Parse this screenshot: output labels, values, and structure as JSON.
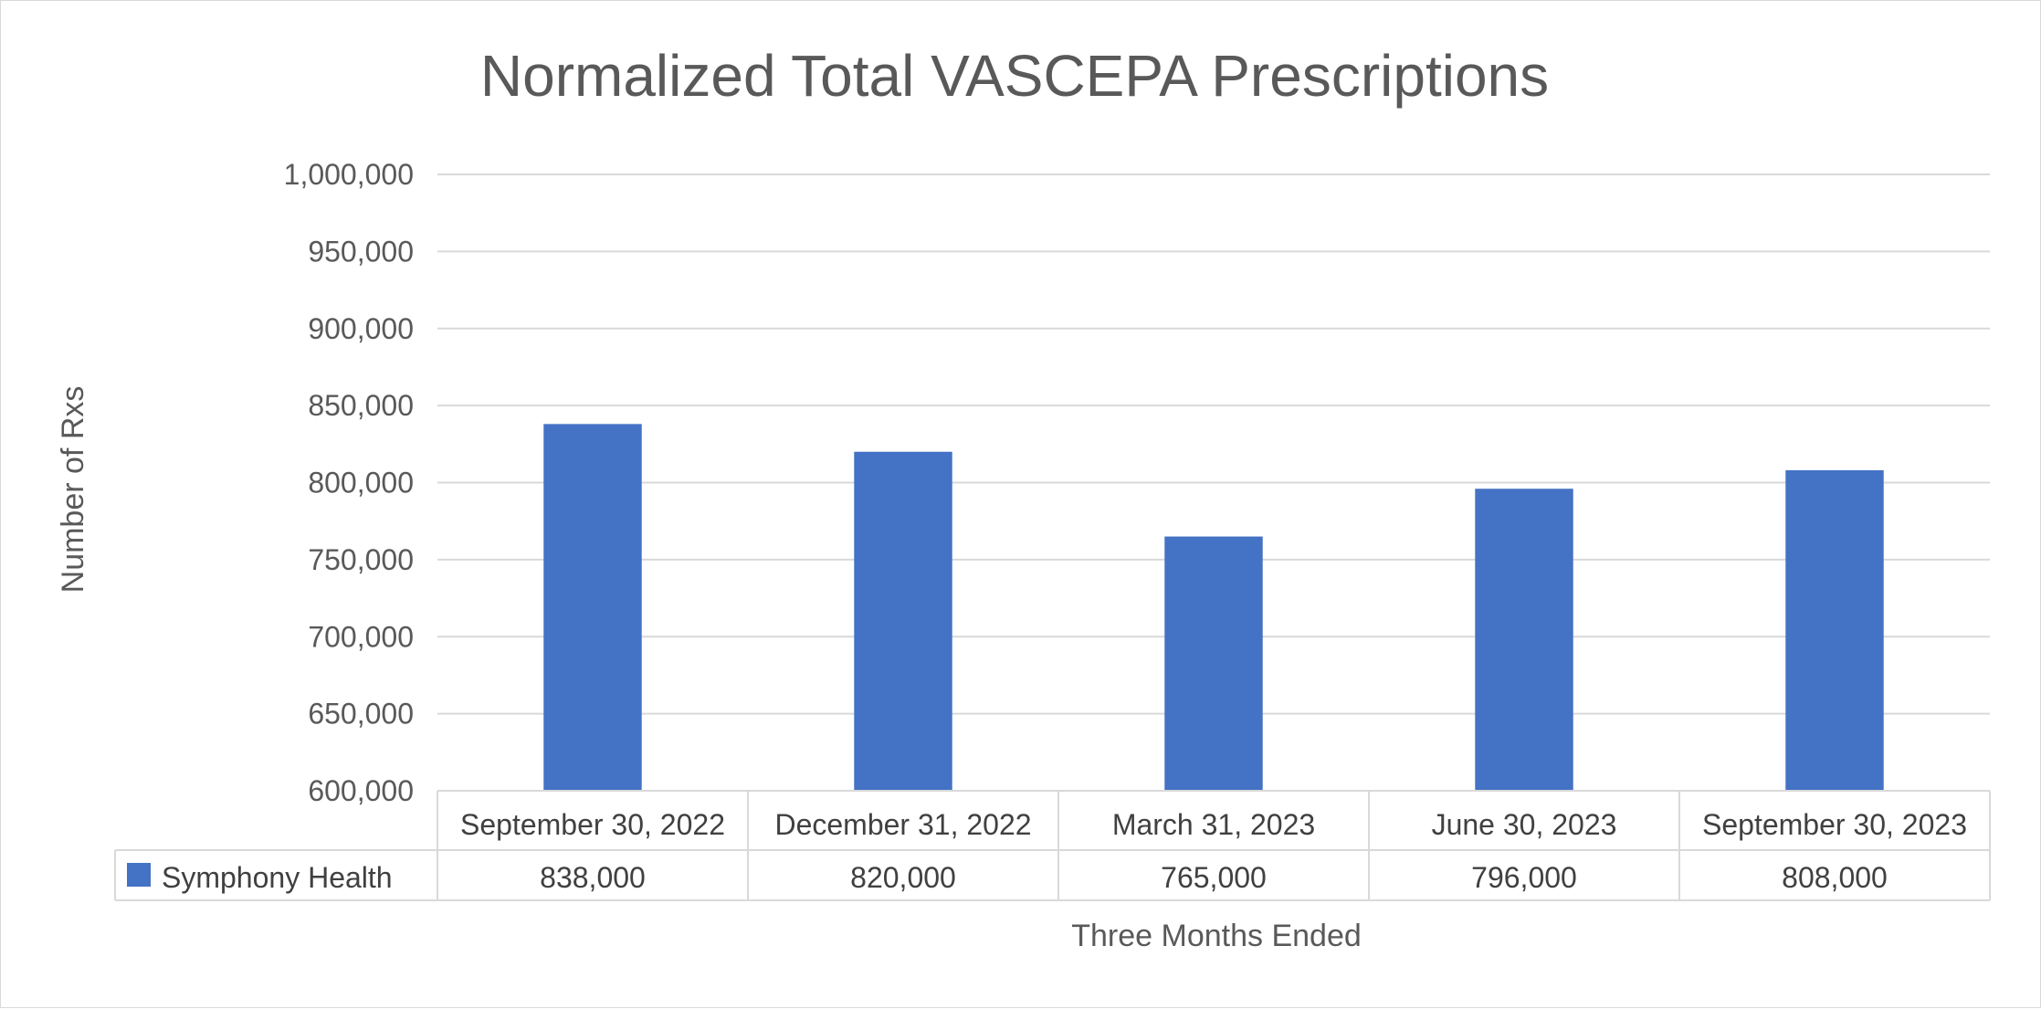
{
  "chart_data": {
    "type": "bar",
    "title": "Normalized Total VASCEPA Prescriptions",
    "xlabel": "Three Months Ended",
    "ylabel": "Number of Rxs",
    "ylim": [
      600000,
      1000000
    ],
    "ytick_step": 50000,
    "y_tick_labels": [
      "600,000",
      "650,000",
      "700,000",
      "750,000",
      "800,000",
      "850,000",
      "900,000",
      "950,000",
      "1,000,000"
    ],
    "categories": [
      "September 30, 2022",
      "December 31, 2022",
      "March 31, 2023",
      "June 30, 2023",
      "September 30, 2023"
    ],
    "series": [
      {
        "name": "Symphony Health",
        "values": [
          838000,
          820000,
          765000,
          796000,
          808000
        ],
        "value_labels": [
          "838,000",
          "820,000",
          "765,000",
          "796,000",
          "808,000"
        ],
        "color": "#4472c4"
      }
    ],
    "grid": true,
    "legend": "data-table"
  }
}
